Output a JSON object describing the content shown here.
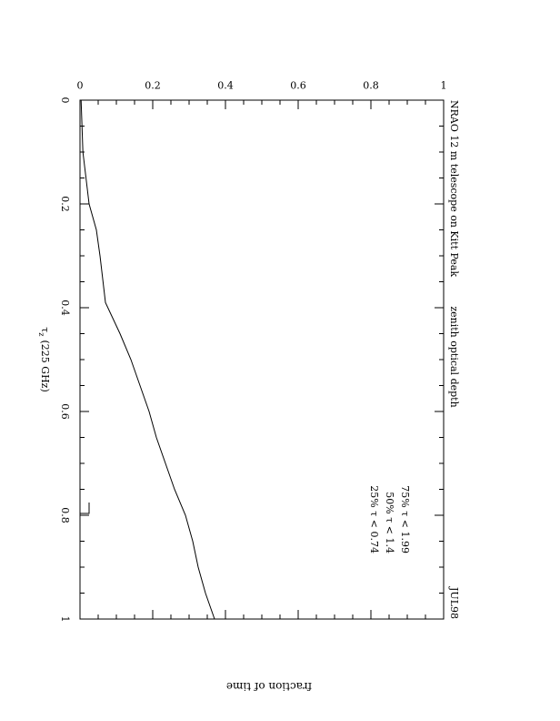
{
  "chart_data": {
    "type": "line",
    "title_left": "NRAO 12 m telescope on Kitt Peak",
    "title_center": "zenith optical depth",
    "title_right": "JUL98",
    "xlabel_tau": "τ",
    "xlabel_sub": "z",
    "xlabel_rest": "(225 GHz)",
    "ylabel": "fraction of time",
    "xlim": [
      0,
      1
    ],
    "ylim": [
      0,
      1
    ],
    "x_ticks": [
      "0",
      "0.2",
      "0.4",
      "0.6",
      "0.8",
      "1"
    ],
    "y_ticks": [
      "0",
      "0.2",
      "0.4",
      "0.6",
      "0.8",
      "1"
    ],
    "annotations": [
      "75% τ < 1.99",
      "50% τ < 1.4",
      "25% τ < 0.74"
    ],
    "series": [
      {
        "x": [
          0,
          0.1,
          0.2,
          0.25,
          0.3,
          0.39,
          0.45,
          0.5,
          0.55,
          0.6,
          0.65,
          0.7,
          0.75,
          0.8,
          0.85,
          0.9,
          0.95,
          1.0
        ],
        "y": [
          0.003,
          0.008,
          0.025,
          0.045,
          0.055,
          0.07,
          0.11,
          0.14,
          0.165,
          0.19,
          0.21,
          0.235,
          0.26,
          0.29,
          0.31,
          0.325,
          0.345,
          0.37
        ]
      }
    ]
  }
}
